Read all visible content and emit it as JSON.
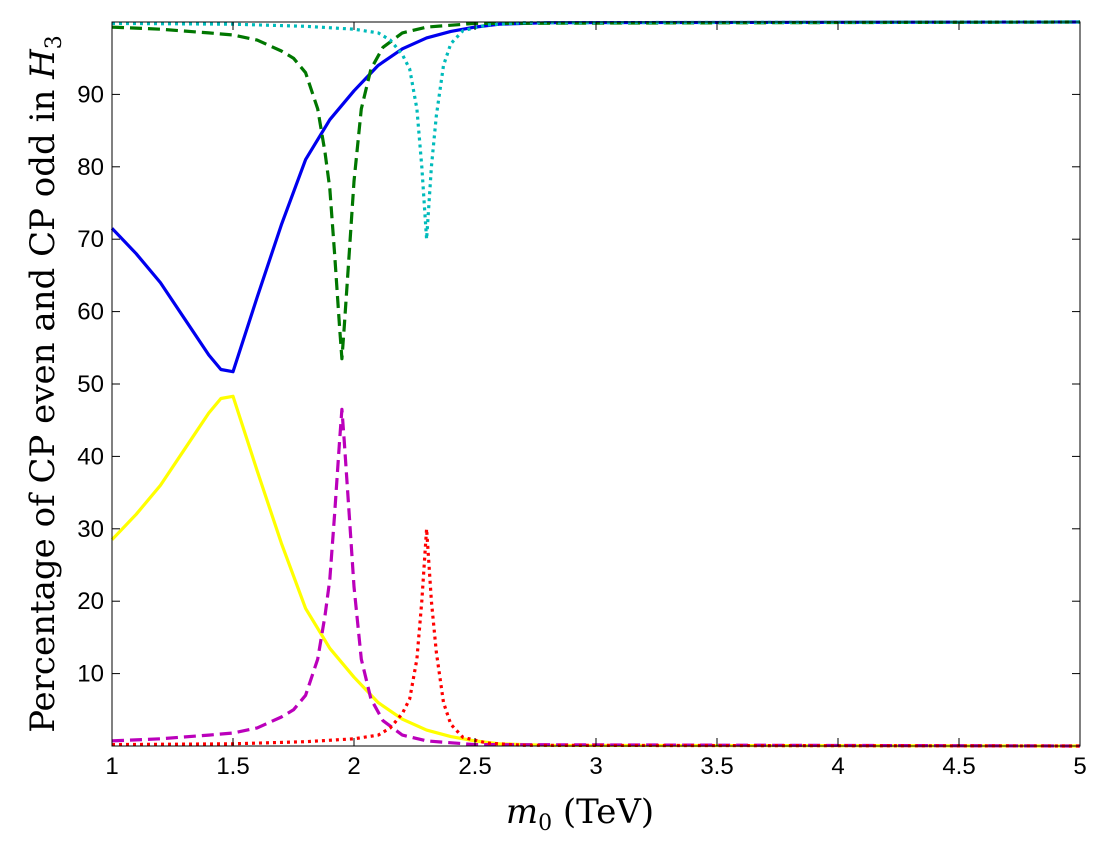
{
  "chart_data": {
    "type": "line",
    "title": "",
    "xlabel_parts": {
      "var": "m",
      "sub": "0",
      "rest": " (TeV)"
    },
    "ylabel_parts": {
      "text": "Percentage of CP even and CP odd in ",
      "var": "H",
      "sub": "3"
    },
    "xlim": [
      1,
      5
    ],
    "ylim": [
      0,
      100
    ],
    "x_ticks": [
      "1",
      "1.5",
      "2",
      "2.5",
      "3",
      "3.5",
      "4",
      "4.5",
      "5"
    ],
    "y_ticks": [
      "10",
      "20",
      "30",
      "40",
      "50",
      "60",
      "70",
      "80",
      "90"
    ],
    "grid": false,
    "legend": "none",
    "series": [
      {
        "color": "#0000ee",
        "style": "solid",
        "points": [
          [
            1.0,
            71.5
          ],
          [
            1.1,
            68
          ],
          [
            1.2,
            64
          ],
          [
            1.3,
            59
          ],
          [
            1.4,
            54
          ],
          [
            1.45,
            52
          ],
          [
            1.5,
            51.7
          ],
          [
            1.6,
            62
          ],
          [
            1.7,
            72
          ],
          [
            1.8,
            81
          ],
          [
            1.9,
            86.5
          ],
          [
            2.0,
            90.5
          ],
          [
            2.1,
            94
          ],
          [
            2.2,
            96.3
          ],
          [
            2.3,
            97.8
          ],
          [
            2.4,
            98.7
          ],
          [
            2.5,
            99.3
          ],
          [
            2.6,
            99.7
          ],
          [
            2.8,
            99.9
          ],
          [
            5.0,
            100
          ]
        ]
      },
      {
        "color": "#ffff00",
        "style": "solid",
        "points": [
          [
            1.0,
            28.5
          ],
          [
            1.1,
            32
          ],
          [
            1.2,
            36
          ],
          [
            1.3,
            41
          ],
          [
            1.4,
            46
          ],
          [
            1.45,
            48
          ],
          [
            1.5,
            48.3
          ],
          [
            1.6,
            38
          ],
          [
            1.7,
            28
          ],
          [
            1.8,
            19
          ],
          [
            1.9,
            13.5
          ],
          [
            2.0,
            9.5
          ],
          [
            2.1,
            6
          ],
          [
            2.2,
            3.7
          ],
          [
            2.3,
            2.2
          ],
          [
            2.4,
            1.3
          ],
          [
            2.5,
            0.7
          ],
          [
            2.6,
            0.3
          ],
          [
            2.8,
            0.1
          ],
          [
            5.0,
            0
          ]
        ]
      },
      {
        "color": "#007700",
        "style": "dashed",
        "points": [
          [
            1.0,
            99.3
          ],
          [
            1.2,
            99.0
          ],
          [
            1.4,
            98.5
          ],
          [
            1.5,
            98.2
          ],
          [
            1.6,
            97.5
          ],
          [
            1.7,
            96.0
          ],
          [
            1.75,
            95.0
          ],
          [
            1.8,
            93.0
          ],
          [
            1.85,
            88.0
          ],
          [
            1.88,
            82.0
          ],
          [
            1.9,
            77.0
          ],
          [
            1.92,
            68.0
          ],
          [
            1.94,
            58.0
          ],
          [
            1.95,
            53.5
          ],
          [
            1.96,
            58.0
          ],
          [
            1.98,
            68.0
          ],
          [
            2.0,
            78.0
          ],
          [
            2.03,
            88.0
          ],
          [
            2.07,
            93.5
          ],
          [
            2.12,
            96.5
          ],
          [
            2.2,
            98.5
          ],
          [
            2.3,
            99.3
          ],
          [
            2.5,
            99.8
          ],
          [
            5.0,
            100
          ]
        ]
      },
      {
        "color": "#bb00bb",
        "style": "dashed",
        "points": [
          [
            1.0,
            0.7
          ],
          [
            1.2,
            1.0
          ],
          [
            1.4,
            1.5
          ],
          [
            1.5,
            1.8
          ],
          [
            1.6,
            2.5
          ],
          [
            1.7,
            4.0
          ],
          [
            1.75,
            5.0
          ],
          [
            1.8,
            7.0
          ],
          [
            1.85,
            12.0
          ],
          [
            1.88,
            18.0
          ],
          [
            1.9,
            23.0
          ],
          [
            1.92,
            32.0
          ],
          [
            1.94,
            42.0
          ],
          [
            1.95,
            46.5
          ],
          [
            1.96,
            42.0
          ],
          [
            1.98,
            32.0
          ],
          [
            2.0,
            22.0
          ],
          [
            2.03,
            12.0
          ],
          [
            2.07,
            6.5
          ],
          [
            2.12,
            3.5
          ],
          [
            2.2,
            1.5
          ],
          [
            2.3,
            0.7
          ],
          [
            2.5,
            0.2
          ],
          [
            5.0,
            0
          ]
        ]
      },
      {
        "color": "#00bbbb",
        "style": "dotted",
        "points": [
          [
            1.0,
            99.8
          ],
          [
            1.5,
            99.7
          ],
          [
            1.8,
            99.4
          ],
          [
            2.0,
            99.0
          ],
          [
            2.1,
            98.5
          ],
          [
            2.15,
            97.5
          ],
          [
            2.2,
            95.5
          ],
          [
            2.23,
            93.5
          ],
          [
            2.26,
            88.0
          ],
          [
            2.28,
            80.0
          ],
          [
            2.3,
            70.0
          ],
          [
            2.32,
            80.0
          ],
          [
            2.34,
            87.0
          ],
          [
            2.37,
            94.0
          ],
          [
            2.4,
            97.0
          ],
          [
            2.45,
            98.8
          ],
          [
            2.55,
            99.6
          ],
          [
            2.7,
            99.9
          ],
          [
            5.0,
            100
          ]
        ]
      },
      {
        "color": "#ff0000",
        "style": "dotted",
        "points": [
          [
            1.0,
            0.2
          ],
          [
            1.5,
            0.3
          ],
          [
            1.8,
            0.6
          ],
          [
            2.0,
            1.0
          ],
          [
            2.1,
            1.5
          ],
          [
            2.15,
            2.5
          ],
          [
            2.2,
            4.5
          ],
          [
            2.23,
            6.5
          ],
          [
            2.26,
            12.0
          ],
          [
            2.28,
            20.0
          ],
          [
            2.3,
            30.0
          ],
          [
            2.32,
            20.0
          ],
          [
            2.34,
            13.0
          ],
          [
            2.37,
            6.0
          ],
          [
            2.4,
            3.0
          ],
          [
            2.45,
            1.2
          ],
          [
            2.55,
            0.4
          ],
          [
            2.7,
            0.1
          ],
          [
            5.0,
            0
          ]
        ]
      }
    ]
  }
}
